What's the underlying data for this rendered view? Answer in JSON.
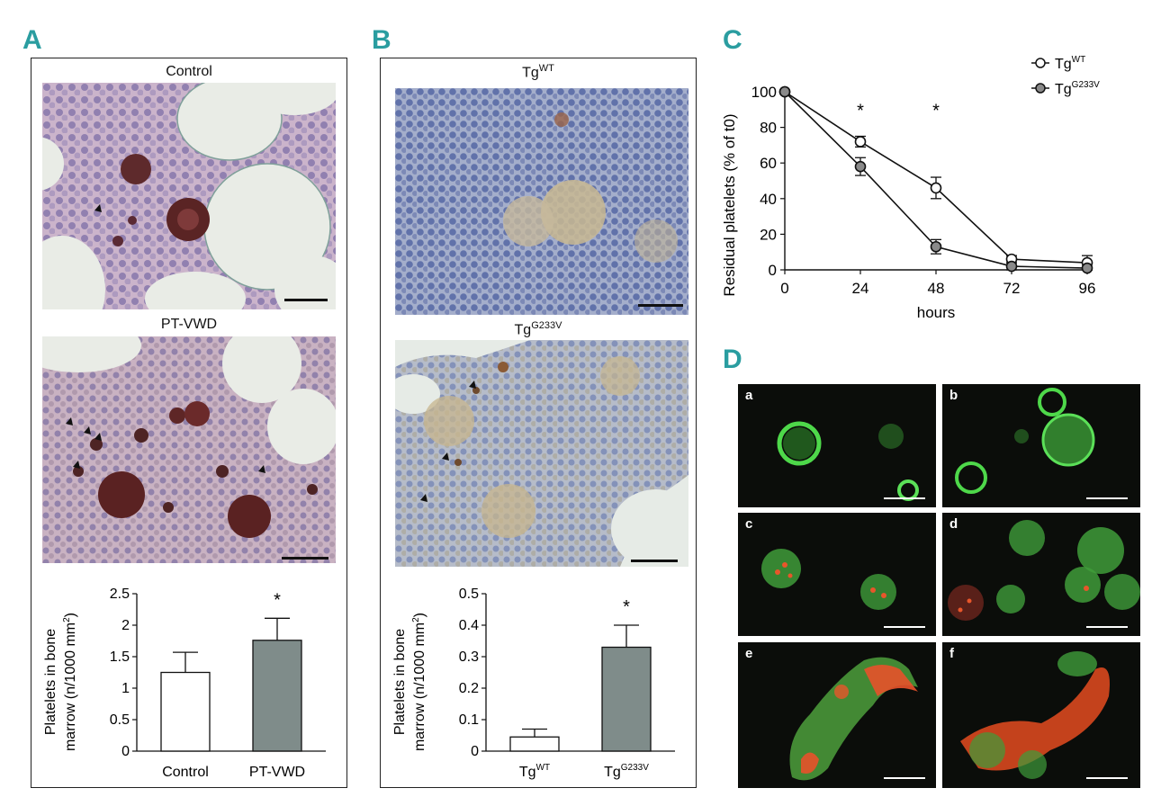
{
  "panels": {
    "A": {
      "label": "A",
      "top_caption": "Control",
      "mid_caption": "PT-VWD"
    },
    "B": {
      "label": "B",
      "top_caption_base": "Tg",
      "top_caption_sup": "WT",
      "mid_caption_base": "Tg",
      "mid_caption_sup": "G233V"
    },
    "C": {
      "label": "C",
      "legend": [
        {
          "base": "Tg",
          "sup": "WT"
        },
        {
          "base": "Tg",
          "sup": "G233V"
        }
      ]
    },
    "D": {
      "label": "D",
      "sublabels": [
        "a",
        "b",
        "c",
        "d",
        "e",
        "f"
      ]
    }
  },
  "colors": {
    "panel_label": "#2a9da0",
    "bar_grey": "#7f8c8a",
    "marker_grey": "#8a8a8a"
  },
  "chart_data": [
    {
      "id": "A-bar",
      "type": "bar",
      "categories": [
        "Control",
        "PT-VWD"
      ],
      "values": [
        1.25,
        1.76
      ],
      "errors": [
        0.32,
        0.35
      ],
      "ylabel_line1": "Platelets in bone",
      "ylabel_line2": "marrow (n/1000 mm",
      "ylabel_sup": "2",
      "ylabel_end": ")",
      "ylim": [
        0,
        2.5
      ],
      "yticks": [
        "0",
        "0.5",
        "1",
        "1.5",
        "2",
        "2.5"
      ],
      "annotation": "*"
    },
    {
      "id": "B-bar",
      "type": "bar",
      "categories": [
        {
          "base": "Tg",
          "sup": "WT"
        },
        {
          "base": "Tg",
          "sup": "G233V"
        }
      ],
      "values": [
        0.045,
        0.33
      ],
      "errors": [
        0.025,
        0.07
      ],
      "ylabel_line1": "Platelets in bone",
      "ylabel_line2": "marrow (n/1000 mm",
      "ylabel_sup": "2",
      "ylabel_end": ")",
      "ylim": [
        0,
        0.5
      ],
      "yticks": [
        "0",
        "0.1",
        "0.2",
        "0.3",
        "0.4",
        "0.5"
      ],
      "annotation": "*"
    },
    {
      "id": "C-line",
      "type": "line",
      "x": [
        0,
        24,
        48,
        72,
        96
      ],
      "xticks": [
        "0",
        "24",
        "48",
        "72",
        "96"
      ],
      "xlabel": "hours",
      "ylabel": "Residual platelets (% of t0)",
      "ylim": [
        0,
        100
      ],
      "yticks": [
        "0",
        "20",
        "40",
        "60",
        "80",
        "100"
      ],
      "series": [
        {
          "name": "TgWT",
          "values": [
            100,
            72,
            46,
            6,
            4
          ],
          "errors": [
            0,
            3,
            6,
            2,
            4
          ]
        },
        {
          "name": "TgG233V",
          "values": [
            100,
            58,
            13,
            2,
            1
          ],
          "errors": [
            0,
            5,
            4,
            2,
            1
          ]
        }
      ],
      "annotations": [
        {
          "x": 24,
          "text": "*"
        },
        {
          "x": 48,
          "text": "*"
        }
      ]
    }
  ]
}
